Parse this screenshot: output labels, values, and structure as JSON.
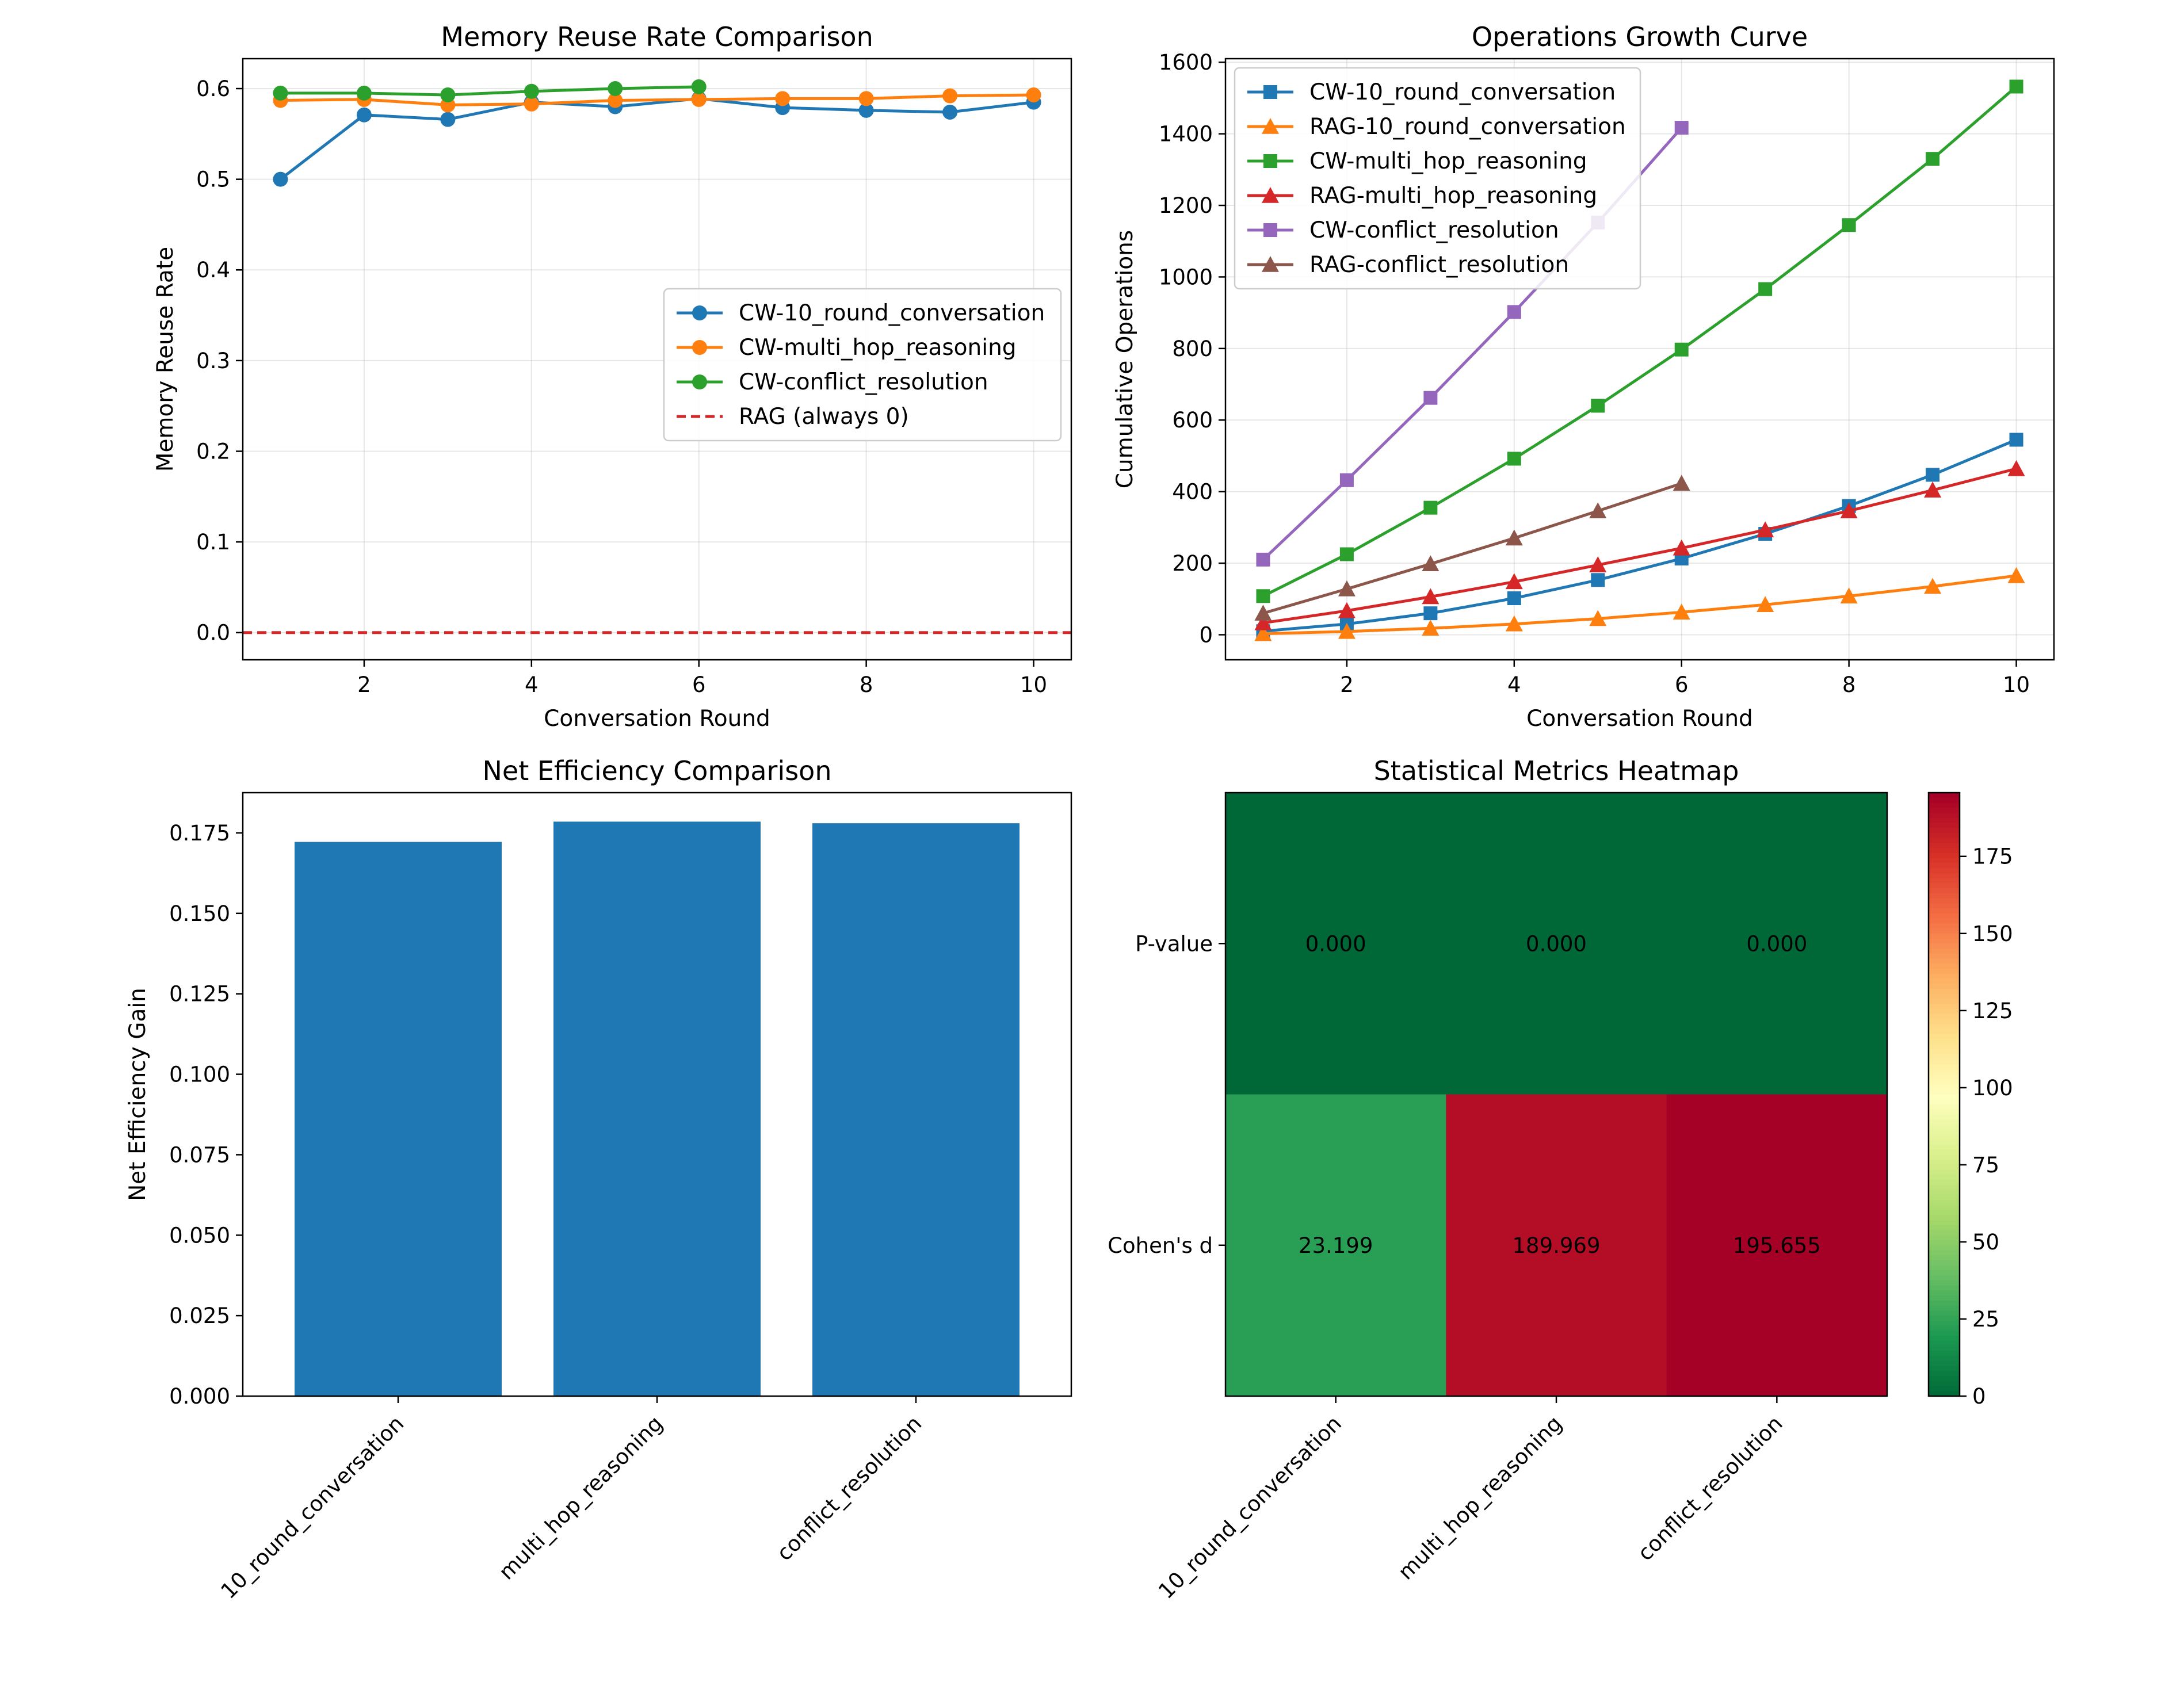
{
  "chart_data": [
    {
      "id": "reuse",
      "type": "line",
      "title": "Memory Reuse Rate Comparison",
      "xlabel": "Conversation Round",
      "ylabel": "Memory Reuse Rate",
      "xlim": [
        0.55,
        10.45
      ],
      "ylim": [
        -0.03,
        0.633
      ],
      "xticks": [
        2,
        4,
        6,
        8,
        10
      ],
      "yticks": [
        0.0,
        0.1,
        0.2,
        0.3,
        0.4,
        0.5,
        0.6
      ],
      "ytick_labels": [
        "0.0",
        "0.1",
        "0.2",
        "0.3",
        "0.4",
        "0.5",
        "0.6"
      ],
      "grid": true,
      "legend_position": "center-right",
      "series": [
        {
          "name": "CW-10_round_conversation",
          "color": "#1f77b4",
          "marker": "circle",
          "x": [
            1,
            2,
            3,
            4,
            5,
            6,
            7,
            8,
            9,
            10
          ],
          "y": [
            0.5,
            0.571,
            0.566,
            0.585,
            0.58,
            0.589,
            0.579,
            0.576,
            0.574,
            0.585
          ]
        },
        {
          "name": "CW-multi_hop_reasoning",
          "color": "#ff7f0e",
          "marker": "circle",
          "x": [
            1,
            2,
            3,
            4,
            5,
            6,
            7,
            8,
            9,
            10
          ],
          "y": [
            0.587,
            0.588,
            0.582,
            0.583,
            0.587,
            0.588,
            0.589,
            0.589,
            0.592,
            0.593
          ]
        },
        {
          "name": "CW-conflict_resolution",
          "color": "#2ca02c",
          "marker": "circle",
          "x": [
            1,
            2,
            3,
            4,
            5,
            6
          ],
          "y": [
            0.595,
            0.595,
            0.593,
            0.597,
            0.6,
            0.602
          ]
        },
        {
          "name": "RAG (always 0)",
          "color": "#d62728",
          "marker": "none",
          "style": "dashed",
          "x": [
            0.55,
            10.45
          ],
          "y": [
            0,
            0
          ]
        }
      ]
    },
    {
      "id": "ops",
      "type": "line",
      "title": "Operations Growth Curve",
      "xlabel": "Conversation Round",
      "ylabel": "Cumulative Operations",
      "xlim": [
        0.55,
        10.45
      ],
      "ylim": [
        -70,
        1610
      ],
      "xticks": [
        2,
        4,
        6,
        8,
        10
      ],
      "yticks": [
        0,
        200,
        400,
        600,
        800,
        1000,
        1200,
        1400,
        1600
      ],
      "ytick_labels": [
        "0",
        "200",
        "400",
        "600",
        "800",
        "1000",
        "1200",
        "1400",
        "1600"
      ],
      "grid": true,
      "legend_position": "top-left",
      "series": [
        {
          "name": "CW-10_round_conversation",
          "color": "#1f77b4",
          "marker": "square",
          "x": [
            1,
            2,
            3,
            4,
            5,
            6,
            7,
            8,
            9,
            10
          ],
          "y": [
            10,
            30,
            60,
            102,
            153,
            213,
            282,
            360,
            447,
            545
          ]
        },
        {
          "name": "RAG-10_round_conversation",
          "color": "#ff7f0e",
          "marker": "triangle",
          "x": [
            1,
            2,
            3,
            4,
            5,
            6,
            7,
            8,
            9,
            10
          ],
          "y": [
            3,
            9,
            18,
            30,
            45,
            63,
            84,
            108,
            135,
            165
          ]
        },
        {
          "name": "CW-multi_hop_reasoning",
          "color": "#2ca02c",
          "marker": "square",
          "x": [
            1,
            2,
            3,
            4,
            5,
            6,
            7,
            8,
            9,
            10
          ],
          "y": [
            108,
            225,
            355,
            492,
            640,
            797,
            966,
            1145,
            1330,
            1532
          ]
        },
        {
          "name": "RAG-multi_hop_reasoning",
          "color": "#d62728",
          "marker": "triangle",
          "x": [
            1,
            2,
            3,
            4,
            5,
            6,
            7,
            8,
            9,
            10
          ],
          "y": [
            33,
            67,
            106,
            148,
            195,
            242,
            293,
            346,
            404,
            464
          ]
        },
        {
          "name": "CW-conflict_resolution",
          "color": "#9467bd",
          "marker": "square",
          "x": [
            1,
            2,
            3,
            4,
            5,
            6
          ],
          "y": [
            210,
            432,
            662,
            902,
            1152,
            1417
          ]
        },
        {
          "name": "RAG-conflict_resolution",
          "color": "#8c564b",
          "marker": "triangle",
          "x": [
            1,
            2,
            3,
            4,
            5,
            6
          ],
          "y": [
            60,
            128,
            198,
            270,
            346,
            423
          ]
        }
      ]
    },
    {
      "id": "eff",
      "type": "bar",
      "title": "Net Efficiency Comparison",
      "xlabel": "",
      "ylabel": "Net Efficiency Gain",
      "categories": [
        "10_round_conversation",
        "multi_hop_reasoning",
        "conflict_resolution"
      ],
      "values": [
        0.1722,
        0.1785,
        0.178
      ],
      "color": "#1f77b4",
      "ylim": [
        0,
        0.1875
      ],
      "yticks": [
        0,
        0.025,
        0.05,
        0.075,
        0.1,
        0.125,
        0.15,
        0.175
      ],
      "ytick_labels": [
        "0.000",
        "0.025",
        "0.050",
        "0.075",
        "0.100",
        "0.125",
        "0.150",
        "0.175"
      ],
      "grid": false
    },
    {
      "id": "heat",
      "type": "heatmap",
      "title": "Statistical Metrics Heatmap",
      "rows": [
        "P-value",
        "Cohen's d"
      ],
      "columns": [
        "10_round_conversation",
        "multi_hop_reasoning",
        "conflict_resolution"
      ],
      "values": [
        [
          0.0,
          0.0,
          0.0
        ],
        [
          23.199,
          189.969,
          195.655
        ]
      ],
      "cell_labels": [
        [
          "0.000",
          "0.000",
          "0.000"
        ],
        [
          "23.199",
          "189.969",
          "195.655"
        ]
      ],
      "colormap": "RdYlGn_r",
      "vmin": 0,
      "vmax": 195.655,
      "colorbar_ticks": [
        0,
        25,
        50,
        75,
        100,
        125,
        150,
        175
      ],
      "colorbar_tick_labels": [
        "0",
        "25",
        "50",
        "75",
        "100",
        "125",
        "150",
        "175"
      ]
    }
  ]
}
